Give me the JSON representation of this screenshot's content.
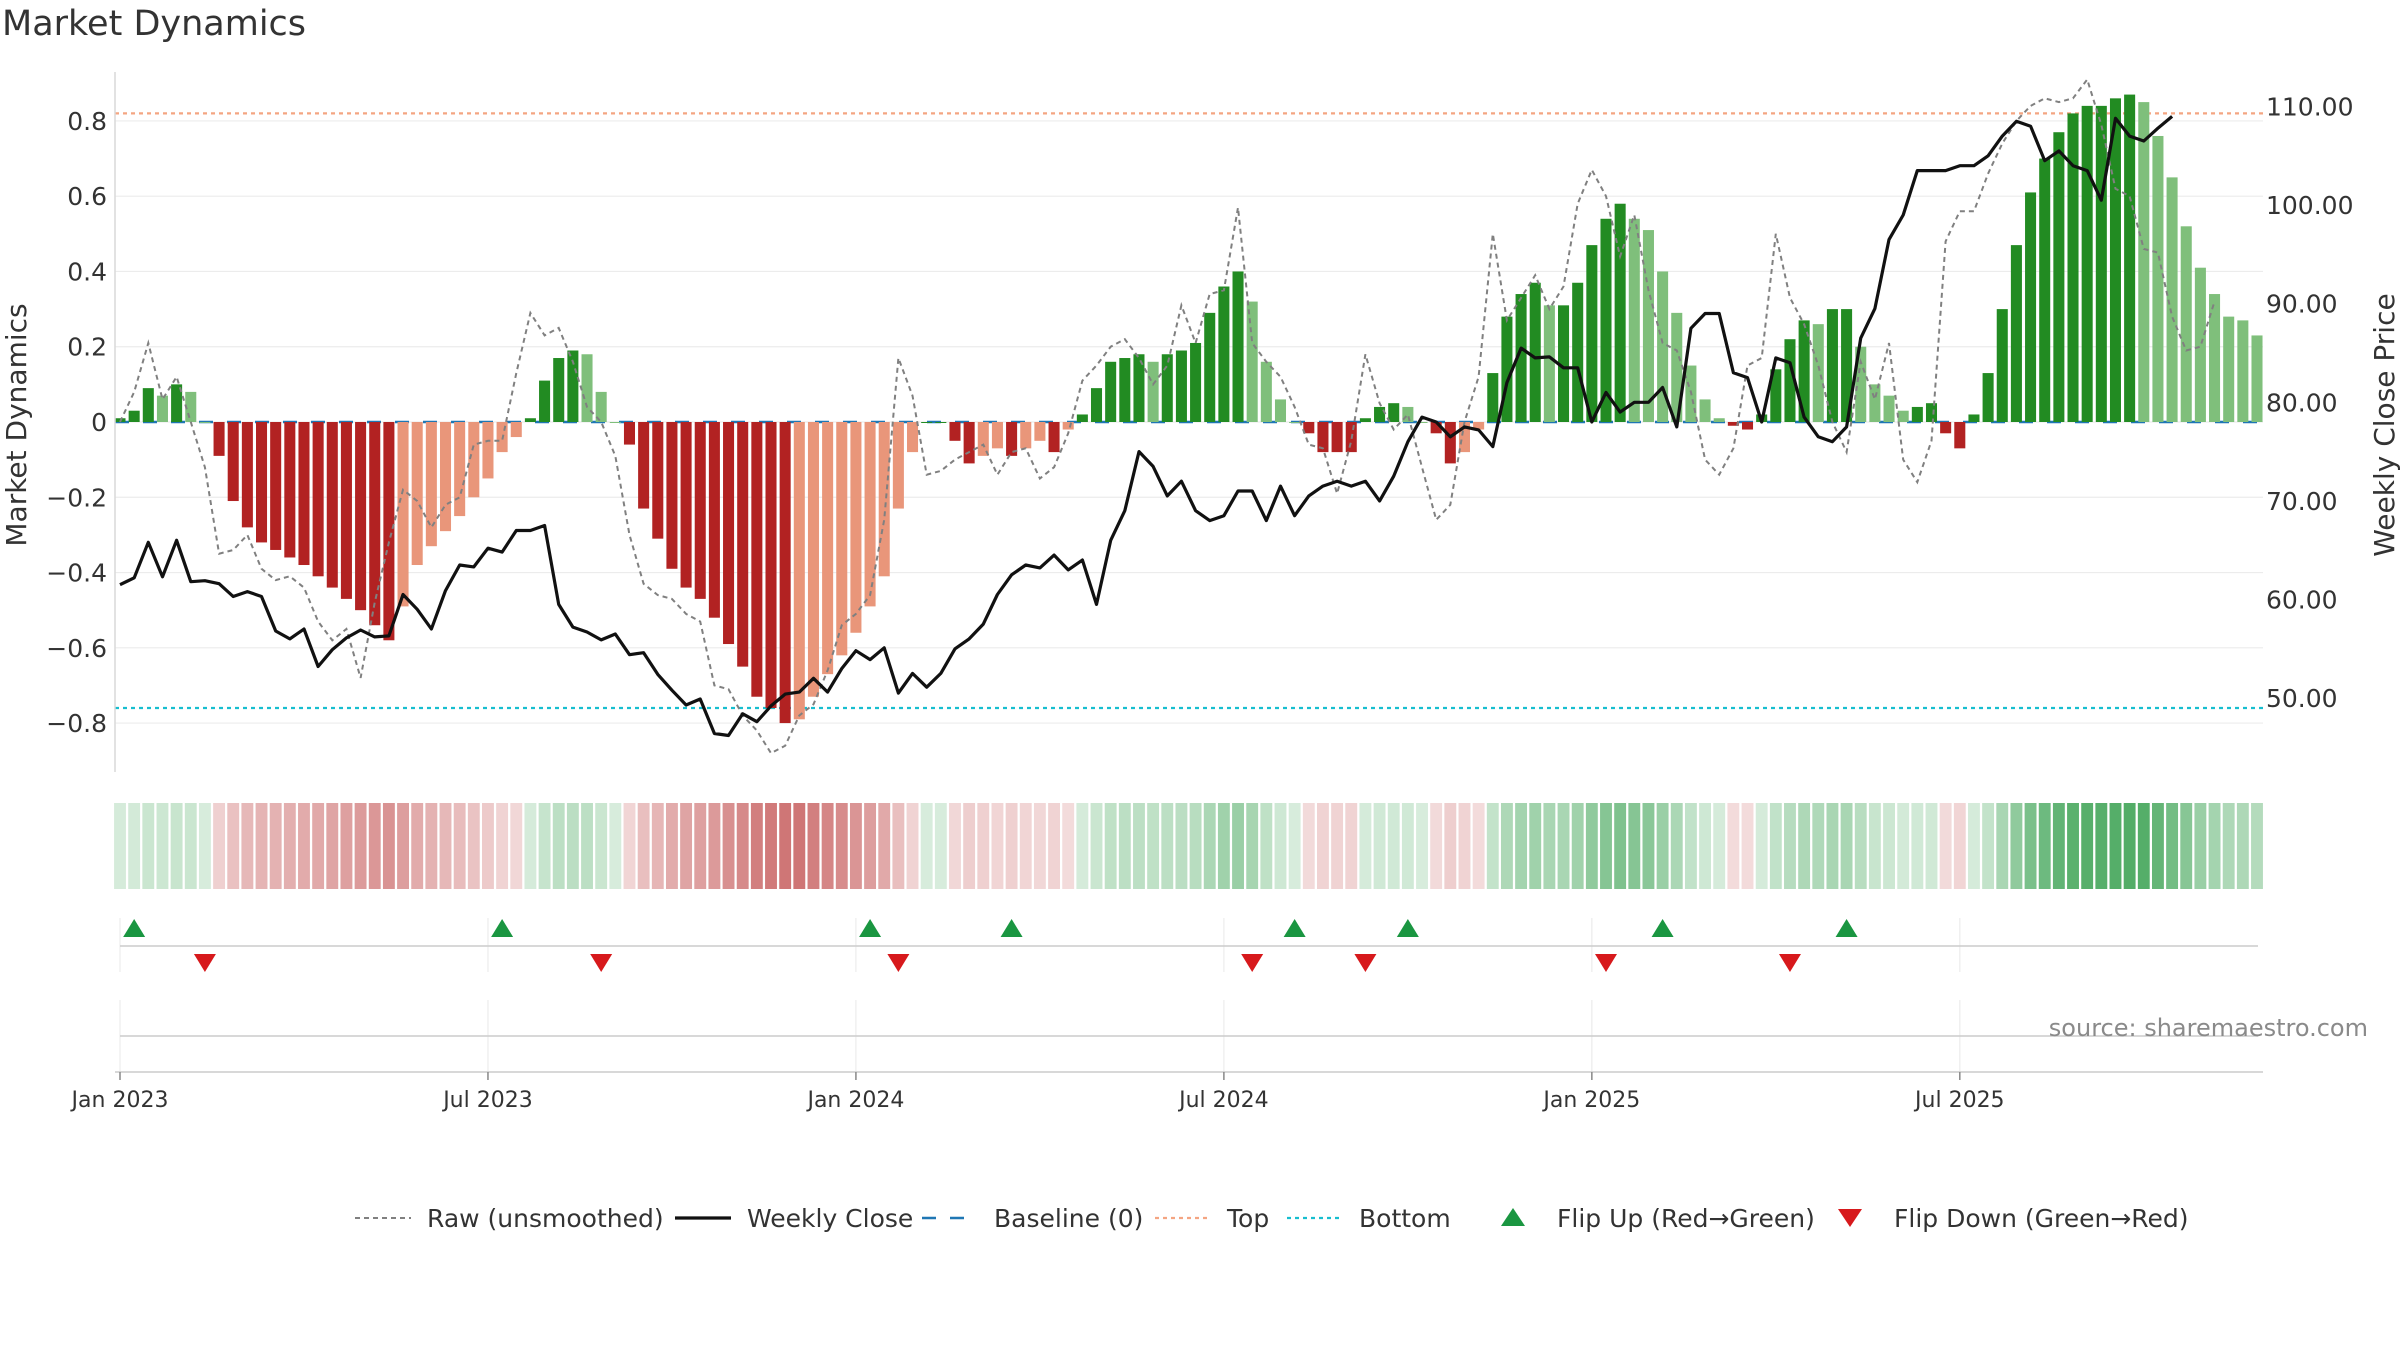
{
  "chart_data": {
    "type": "bar",
    "title": "Market Dynamics",
    "ylabel_left": "Market Dynamics",
    "ylabel_right": "Weekly Close Price",
    "source_note": "source: sharemaestro.com",
    "ylim_left": [
      -0.93,
      0.93
    ],
    "ylim_right": [
      42.5,
      113.5
    ],
    "left_ticks": [
      {
        "v": 0.8,
        "label": "0.8"
      },
      {
        "v": 0.6,
        "label": "0.6"
      },
      {
        "v": 0.4,
        "label": "0.4"
      },
      {
        "v": 0.2,
        "label": "0.2"
      },
      {
        "v": 0,
        "label": "0"
      },
      {
        "v": -0.2,
        "label": "−0.2"
      },
      {
        "v": -0.4,
        "label": "−0.4"
      },
      {
        "v": -0.6,
        "label": "−0.6"
      },
      {
        "v": -0.8,
        "label": "−0.8"
      }
    ],
    "right_ticks": [
      {
        "v": 110,
        "label": "110.00"
      },
      {
        "v": 100,
        "label": "100.00"
      },
      {
        "v": 90,
        "label": "90.00"
      },
      {
        "v": 80,
        "label": "80.00"
      },
      {
        "v": 70,
        "label": "70.00"
      },
      {
        "v": 60,
        "label": "60.00"
      },
      {
        "v": 50,
        "label": "50.00"
      }
    ],
    "x_ticks": [
      {
        "week": 1,
        "label": "Jan 2023"
      },
      {
        "week": 27,
        "label": "Jul 2023"
      },
      {
        "week": 53,
        "label": "Jan 2024"
      },
      {
        "week": 79,
        "label": "Jul 2024"
      },
      {
        "week": 105,
        "label": "Jan 2025"
      },
      {
        "week": 131,
        "label": "Jul 2025"
      }
    ],
    "start_week_label": "Jan 2023",
    "top_level": 0.82,
    "bottom_level": -0.76,
    "baseline": 0,
    "bars": [
      0.01,
      0.03,
      0.09,
      0.07,
      0.1,
      0.08,
      0.0,
      -0.09,
      -0.21,
      -0.28,
      -0.32,
      -0.34,
      -0.36,
      -0.38,
      -0.41,
      -0.44,
      -0.47,
      -0.5,
      -0.54,
      -0.58,
      -0.49,
      -0.38,
      -0.33,
      -0.29,
      -0.25,
      -0.2,
      -0.15,
      -0.08,
      -0.04,
      0.01,
      0.11,
      0.17,
      0.19,
      0.18,
      0.08,
      0.0,
      -0.06,
      -0.23,
      -0.31,
      -0.39,
      -0.44,
      -0.47,
      -0.52,
      -0.59,
      -0.65,
      -0.73,
      -0.76,
      -0.8,
      -0.79,
      -0.73,
      -0.67,
      -0.62,
      -0.56,
      -0.49,
      -0.41,
      -0.23,
      -0.08,
      0.0,
      0.0,
      -0.05,
      -0.11,
      -0.09,
      -0.07,
      -0.09,
      -0.07,
      -0.05,
      -0.08,
      -0.02,
      0.02,
      0.09,
      0.16,
      0.17,
      0.18,
      0.16,
      0.18,
      0.19,
      0.21,
      0.29,
      0.36,
      0.4,
      0.32,
      0.16,
      0.06,
      0.0,
      -0.03,
      -0.08,
      -0.08,
      -0.08,
      0.01,
      0.04,
      0.05,
      0.04,
      0.0,
      -0.03,
      -0.11,
      -0.08,
      -0.02,
      0.13,
      0.28,
      0.34,
      0.37,
      0.31,
      0.31,
      0.37,
      0.47,
      0.54,
      0.58,
      0.54,
      0.51,
      0.4,
      0.29,
      0.15,
      0.06,
      0.01,
      -0.01,
      -0.02,
      0.02,
      0.14,
      0.22,
      0.27,
      0.26,
      0.3,
      0.3,
      0.2,
      0.1,
      0.07,
      0.03,
      0.04,
      0.05,
      -0.03,
      -0.07,
      0.02,
      0.13,
      0.3,
      0.47,
      0.61,
      0.7,
      0.77,
      0.82,
      0.84,
      0.84,
      0.86,
      0.87,
      0.85,
      0.76,
      0.65,
      0.52,
      0.41,
      0.34,
      0.28,
      0.27,
      0.23
    ],
    "raw": [
      0.0,
      0.08,
      0.21,
      0.06,
      0.12,
      0.0,
      -0.12,
      -0.35,
      -0.34,
      -0.3,
      -0.39,
      -0.42,
      -0.41,
      -0.44,
      -0.53,
      -0.58,
      -0.55,
      -0.68,
      -0.48,
      -0.32,
      -0.18,
      -0.21,
      -0.28,
      -0.22,
      -0.2,
      -0.06,
      -0.05,
      -0.05,
      0.13,
      0.29,
      0.23,
      0.25,
      0.16,
      0.04,
      0.0,
      -0.09,
      -0.3,
      -0.43,
      -0.46,
      -0.47,
      -0.51,
      -0.53,
      -0.7,
      -0.71,
      -0.78,
      -0.82,
      -0.88,
      -0.86,
      -0.78,
      -0.75,
      -0.66,
      -0.54,
      -0.51,
      -0.46,
      -0.26,
      0.17,
      0.07,
      -0.14,
      -0.13,
      -0.1,
      -0.08,
      -0.06,
      -0.14,
      -0.08,
      -0.07,
      -0.15,
      -0.12,
      -0.03,
      0.11,
      0.15,
      0.2,
      0.22,
      0.17,
      0.1,
      0.15,
      0.31,
      0.21,
      0.34,
      0.35,
      0.57,
      0.21,
      0.16,
      0.12,
      0.04,
      -0.06,
      -0.07,
      -0.19,
      -0.05,
      0.18,
      0.05,
      -0.02,
      0.02,
      -0.12,
      -0.26,
      -0.22,
      0.0,
      0.12,
      0.5,
      0.27,
      0.33,
      0.39,
      0.3,
      0.36,
      0.58,
      0.67,
      0.6,
      0.44,
      0.55,
      0.35,
      0.21,
      0.19,
      0.08,
      -0.1,
      -0.14,
      -0.07,
      0.15,
      0.17,
      0.5,
      0.33,
      0.26,
      0.15,
      0.0,
      -0.08,
      0.16,
      0.06,
      0.21,
      -0.1,
      -0.16,
      -0.05,
      0.48,
      0.56,
      0.56,
      0.66,
      0.74,
      0.8,
      0.84,
      0.86,
      0.85,
      0.86,
      0.91,
      0.79,
      0.62,
      0.6,
      0.46,
      0.45,
      0.28,
      0.19,
      0.2,
      0.32
    ],
    "close": [
      61.5,
      62.2,
      65.8,
      62.3,
      66.0,
      61.8,
      61.9,
      61.6,
      60.3,
      60.8,
      60.3,
      56.8,
      56.0,
      57.0,
      53.2,
      54.9,
      56.1,
      56.9,
      56.2,
      56.3,
      60.5,
      59.0,
      57.0,
      60.9,
      63.5,
      63.3,
      65.2,
      64.8,
      67.0,
      67.0,
      67.5,
      59.5,
      57.2,
      56.7,
      55.9,
      56.5,
      54.4,
      54.6,
      52.4,
      50.8,
      49.3,
      49.9,
      46.4,
      46.2,
      48.4,
      47.6,
      49.2,
      50.4,
      50.6,
      52.0,
      50.6,
      53.0,
      54.8,
      53.9,
      55.1,
      50.5,
      52.5,
      51.1,
      52.5,
      55.0,
      56.0,
      57.5,
      60.5,
      62.5,
      63.5,
      63.2,
      64.5,
      63.0,
      64.0,
      59.5,
      66.0,
      69.0,
      75.0,
      73.5,
      70.5,
      72.0,
      69.0,
      68.0,
      68.5,
      71.0,
      71.0,
      68.0,
      71.5,
      68.5,
      70.5,
      71.5,
      72.0,
      71.5,
      72.0,
      70.0,
      72.5,
      76.0,
      78.5,
      78.0,
      76.5,
      77.5,
      77.2,
      75.5,
      82.0,
      85.5,
      84.5,
      84.6,
      83.5,
      83.5,
      78.0,
      81.0,
      79.0,
      80.0,
      80.0,
      81.5,
      77.5,
      87.5,
      89.0,
      89.0,
      83.0,
      82.5,
      78.0,
      84.5,
      84.0,
      78.5,
      76.5,
      76.0,
      77.5,
      86.5,
      89.5,
      96.5,
      99.0,
      103.5,
      103.5,
      103.5,
      104.0,
      104.0,
      105.0,
      107.0,
      108.5,
      108.0,
      104.5,
      105.5,
      104.0,
      103.5,
      100.5,
      108.8,
      107.0,
      106.5,
      107.8,
      109.0
    ],
    "strip_levels": [
      1,
      1,
      1,
      1,
      1,
      1,
      1,
      1,
      1,
      1,
      1,
      1,
      1,
      1,
      1,
      1,
      1,
      1,
      1,
      1,
      1,
      1,
      1,
      1,
      1,
      1,
      1,
      1,
      1,
      1,
      1,
      1,
      1,
      1,
      1,
      1,
      1,
      1,
      1,
      1,
      1,
      1,
      1,
      1,
      1,
      1,
      1,
      1,
      1,
      1,
      1,
      1,
      1,
      1,
      1,
      1,
      1,
      1,
      1,
      1,
      1,
      1,
      1,
      1,
      1,
      1,
      1,
      1,
      1,
      1,
      1,
      1,
      1,
      1,
      1,
      1,
      1,
      1,
      1,
      1,
      1,
      1,
      1,
      1,
      1,
      1,
      1,
      1,
      1,
      1,
      1,
      1,
      1,
      1,
      1,
      1,
      1,
      1,
      1,
      1,
      1,
      1,
      1,
      1,
      1,
      1,
      1,
      1,
      1,
      1,
      1,
      1,
      1,
      1,
      1,
      1,
      1,
      1,
      1,
      1,
      1,
      1,
      1,
      1,
      1,
      1,
      1,
      1,
      1,
      1,
      1,
      1,
      1,
      1,
      1,
      1,
      1,
      1,
      1,
      1,
      1,
      1,
      1,
      1,
      1,
      1,
      1,
      1,
      1,
      1,
      1,
      1,
      1,
      1,
      1
    ],
    "flip_up_weeks": [
      2,
      28,
      54,
      64,
      84,
      92,
      110,
      123
    ],
    "flip_down_weeks": [
      7,
      35,
      56,
      81,
      89,
      106,
      119
    ],
    "colors": {
      "green_strong": "#228b22",
      "green_light": "#7fbf7b",
      "red_strong": "#b22222",
      "red_light": "#e9967a",
      "close_line": "#111111",
      "raw_line": "#808080",
      "baseline": "#1f77b4",
      "top": "#f4a582",
      "bottom": "#17becf",
      "flip_up": "#1a9641",
      "flip_down": "#d7191c"
    },
    "legend": [
      {
        "key": "raw",
        "label": "Raw (unsmoothed)"
      },
      {
        "key": "close",
        "label": "Weekly Close"
      },
      {
        "key": "baseline",
        "label": "Baseline (0)"
      },
      {
        "key": "top",
        "label": "Top"
      },
      {
        "key": "bottom",
        "label": "Bottom"
      },
      {
        "key": "flipup",
        "label": "Flip Up (Red→Green)"
      },
      {
        "key": "flipdown",
        "label": "Flip Down (Green→Red)"
      }
    ]
  }
}
